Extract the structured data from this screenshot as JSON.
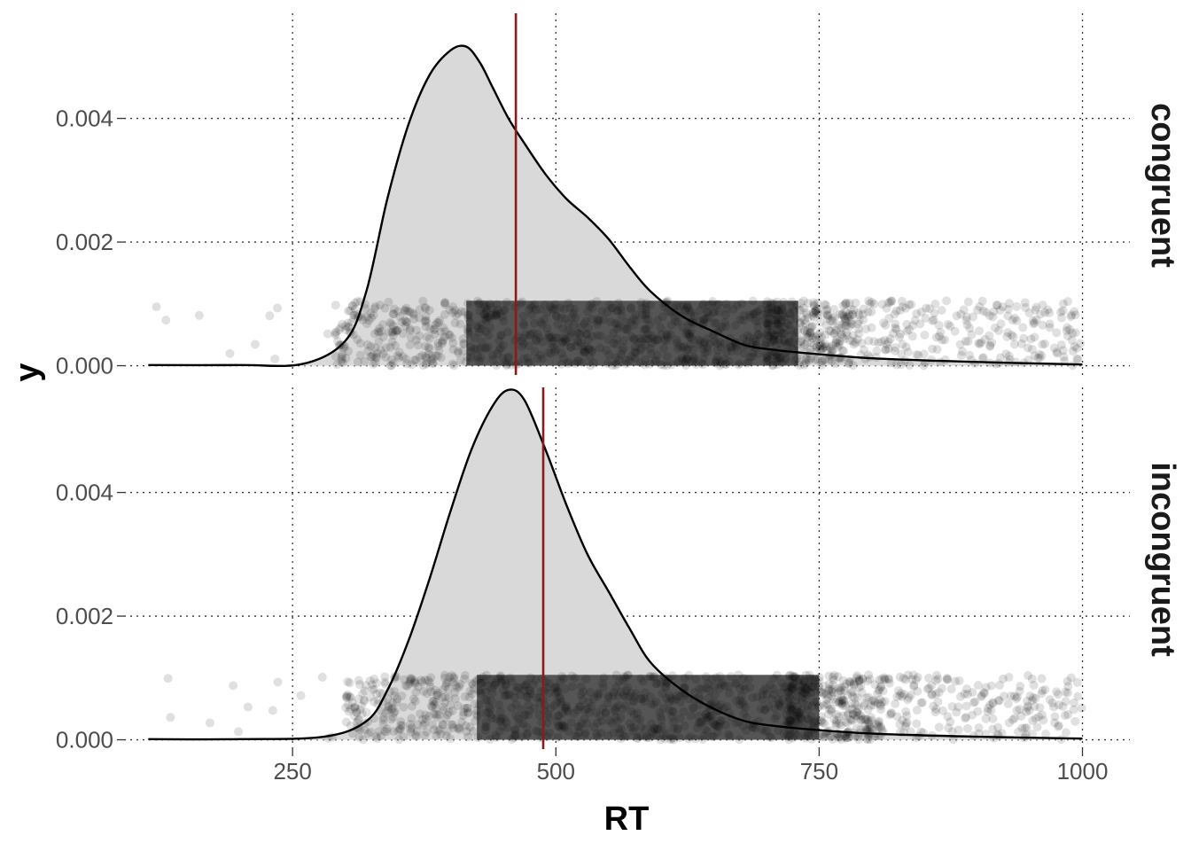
{
  "chart_data": {
    "type": "area",
    "xlabel": "RT",
    "ylabel": "y",
    "xlim": [
      90,
      1045
    ],
    "ylim": [
      -0.00015,
      0.0057
    ],
    "x_ticks": [
      250,
      500,
      750,
      1000
    ],
    "x_tick_labels": [
      "250",
      "500",
      "750",
      "1000"
    ],
    "y_ticks": [
      0,
      0.002,
      0.004
    ],
    "y_tick_labels": [
      "0.000",
      "0.002",
      "0.004"
    ],
    "grid": true,
    "legend": "none",
    "colors": {
      "fill": "#d9d9d9",
      "line": "#000000",
      "points": "#000000",
      "mean_line": "#8b1a1a"
    },
    "facets": [
      {
        "label": "congruent",
        "mean_rt": 462,
        "density": {
          "x": [
            113,
            200,
            260,
            300,
            320,
            340,
            360,
            380,
            400,
            415,
            428,
            440,
            455,
            470,
            490,
            510,
            530,
            550,
            570,
            590,
            620,
            650,
            680,
            710,
            740,
            800,
            900,
            1000
          ],
          "y": [
            1e-05,
            1e-05,
            3e-05,
            0.0004,
            0.0012,
            0.0027,
            0.0039,
            0.0047,
            0.0051,
            0.00516,
            0.0049,
            0.0045,
            0.004,
            0.0036,
            0.0031,
            0.0027,
            0.0024,
            0.00205,
            0.0016,
            0.0012,
            0.0008,
            0.00055,
            0.00033,
            0.00025,
            0.0002,
            0.00012,
            6e-05,
            2e-05
          ]
        },
        "points": {
          "description_none": "",
          "rt_min": 113,
          "rt_max": 1000,
          "bulk_range": [
            320,
            740
          ]
        }
      },
      {
        "label": "incongruent",
        "mean_rt": 488,
        "density": {
          "x": [
            113,
            200,
            280,
            320,
            340,
            360,
            380,
            400,
            420,
            440,
            455,
            470,
            490,
            510,
            530,
            550,
            570,
            590,
            620,
            650,
            680,
            710,
            740,
            800,
            900,
            1000
          ],
          "y": [
            1e-05,
            1e-05,
            5e-05,
            0.0003,
            0.0008,
            0.0016,
            0.0026,
            0.0037,
            0.0047,
            0.0054,
            0.00566,
            0.0055,
            0.0047,
            0.0038,
            0.003,
            0.0024,
            0.0018,
            0.00125,
            0.0008,
            0.0005,
            0.0003,
            0.00022,
            0.00017,
            0.0001,
            5e-05,
            2e-05
          ]
        },
        "points": {
          "rt_min": 130,
          "rt_max": 1000,
          "bulk_range": [
            330,
            760
          ]
        }
      }
    ]
  }
}
